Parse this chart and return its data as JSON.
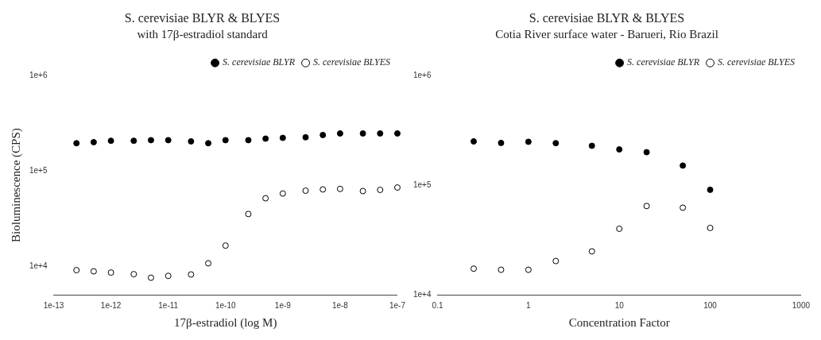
{
  "chart_data": [
    {
      "type": "scatter",
      "title": "S. cerevisiae BLYR & BLYES",
      "subtitle": "with 17β-estradiol standard",
      "xlabel": "17β-estradiol (log M)",
      "ylabel": "Bioluminescence (CPS)",
      "log": "xy",
      "marker": "circle",
      "legend": "top right",
      "grid": false,
      "x": [
        2.5e-13,
        5e-13,
        1e-12,
        2.5e-12,
        5e-12,
        1e-11,
        2.5e-11,
        5e-11,
        1e-10,
        2.5e-10,
        5e-10,
        1e-09,
        2.5e-09,
        5e-09,
        1e-08,
        2.5e-08,
        5e-08,
        1e-07
      ],
      "xlim": [
        1e-13,
        1e-07
      ],
      "xticks": [
        {
          "value": 1e-13,
          "label": "1e-13"
        },
        {
          "value": 1e-12,
          "label": "1e-12"
        },
        {
          "value": 1e-11,
          "label": "1e-11"
        },
        {
          "value": 1e-10,
          "label": "1e-10"
        },
        {
          "value": 1e-09,
          "label": "1e-9"
        },
        {
          "value": 1e-08,
          "label": "1e-8"
        },
        {
          "value": 1e-07,
          "label": "1e-7"
        }
      ],
      "ylim": [
        5000,
        1000000
      ],
      "yticks": [
        {
          "value": 10000,
          "label": "1e+4"
        },
        {
          "value": 100000,
          "label": "1e+5"
        },
        {
          "value": 1000000,
          "label": "1e+6"
        }
      ],
      "series": [
        {
          "name": "S. cerevisiae BLYR",
          "color": "#000000",
          "values": [
            195000,
            200000,
            207000,
            207000,
            210000,
            210000,
            204000,
            195000,
            210000,
            210000,
            218000,
            222000,
            225000,
            238000,
            247000,
            247000,
            247000,
            247000
          ]
        },
        {
          "name": "S. cerevisiae BLYES",
          "color": "#000000",
          "values": [
            9060,
            8800,
            8550,
            8220,
            7540,
            7890,
            8160,
            10700,
            16400,
            35200,
            51500,
            57800,
            61900,
            63800,
            64600,
            61300,
            63100,
            66800
          ]
        }
      ]
    },
    {
      "type": "scatter",
      "title": "S. cerevisiae BLYR & BLYES",
      "subtitle": "Cotia River surface water - Barueri, Rio Brazil",
      "xlabel": "Concentration Factor",
      "log": "xy",
      "marker": "circle",
      "legend": "top right",
      "grid": false,
      "x": [
        0.25,
        0.5,
        1,
        2,
        5,
        10,
        20,
        50,
        100
      ],
      "xlim": [
        0.1,
        1000
      ],
      "xticks": [
        0.1,
        1,
        10,
        100,
        1000
      ],
      "ylim": [
        10000,
        1000000
      ],
      "yticks": [
        {
          "value": 10000,
          "label": "1e+4"
        },
        {
          "value": 100000,
          "label": "1e+5"
        },
        {
          "value": 1000000,
          "label": "1e+6"
        }
      ],
      "series": [
        {
          "name": "S. cerevisiae BLYR",
          "color": "#000000",
          "values": [
            251000,
            243000,
            249000,
            242000,
            229000,
            212000,
            200000,
            151000,
            90800
          ]
        },
        {
          "name": "S. cerevisiae BLYES",
          "color": "#000000",
          "values": [
            17300,
            16900,
            16900,
            20300,
            24900,
            40000,
            64500,
            62300,
            40700
          ]
        }
      ]
    }
  ]
}
